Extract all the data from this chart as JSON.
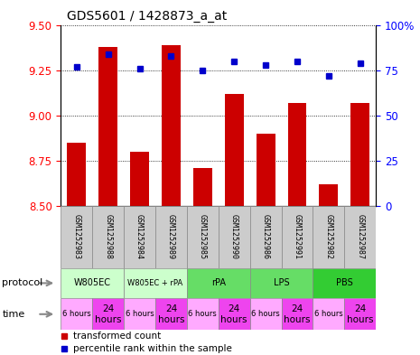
{
  "title": "GDS5601 / 1428873_a_at",
  "samples": [
    "GSM1252983",
    "GSM1252988",
    "GSM1252984",
    "GSM1252989",
    "GSM1252985",
    "GSM1252990",
    "GSM1252986",
    "GSM1252991",
    "GSM1252982",
    "GSM1252987"
  ],
  "transformed_count": [
    8.85,
    9.38,
    8.8,
    9.39,
    8.71,
    9.12,
    8.9,
    9.07,
    8.62,
    9.07
  ],
  "percentile_rank": [
    77,
    84,
    76,
    83,
    75,
    80,
    78,
    80,
    72,
    79
  ],
  "ylim_left": [
    8.5,
    9.5
  ],
  "ylim_right": [
    0,
    100
  ],
  "yticks_left": [
    8.5,
    8.75,
    9.0,
    9.25,
    9.5
  ],
  "yticks_right": [
    0,
    25,
    50,
    75,
    100
  ],
  "bar_color": "#cc0000",
  "dot_color": "#0000cc",
  "sample_bg": "#cccccc",
  "protocol_groups": [
    {
      "label": "W805EC",
      "start": 0,
      "end": 2,
      "color": "#ccffcc"
    },
    {
      "label": "W805EC + rPA",
      "start": 2,
      "end": 4,
      "color": "#ccffcc"
    },
    {
      "label": "rPA",
      "start": 4,
      "end": 6,
      "color": "#66dd66"
    },
    {
      "label": "LPS",
      "start": 6,
      "end": 8,
      "color": "#66dd66"
    },
    {
      "label": "PBS",
      "start": 8,
      "end": 10,
      "color": "#33cc33"
    }
  ],
  "time_colors_light": "#ffaaff",
  "time_colors_dark": "#ee44ee",
  "legend_bar_label": "transformed count",
  "legend_dot_label": "percentile rank within the sample"
}
